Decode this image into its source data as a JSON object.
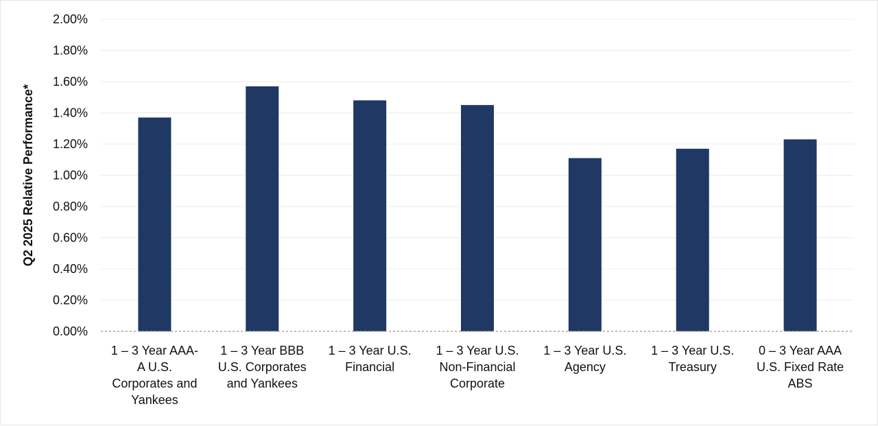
{
  "chart_data": {
    "type": "bar",
    "ylabel": "Q2 2025 Relative Performance*",
    "xlabel": "",
    "ylim": [
      0,
      0.02
    ],
    "grid": true,
    "yticks": [
      "0.00%",
      "0.20%",
      "0.40%",
      "0.60%",
      "0.80%",
      "1.00%",
      "1.20%",
      "1.40%",
      "1.60%",
      "1.80%",
      "2.00%"
    ],
    "categories": [
      [
        "1 – 3 Year AAA-",
        "A U.S.",
        "Corporates and",
        "Yankees"
      ],
      [
        "1 – 3 Year BBB",
        "U.S. Corporates",
        "and Yankees"
      ],
      [
        "1 – 3 Year U.S.",
        "Financial"
      ],
      [
        "1 – 3 Year U.S.",
        "Non-Financial",
        "Corporate"
      ],
      [
        "1 – 3 Year U.S.",
        "Agency"
      ],
      [
        "1 – 3 Year U.S.",
        "Treasury"
      ],
      [
        "0 – 3 Year AAA",
        "U.S. Fixed Rate",
        "ABS"
      ]
    ],
    "values": [
      0.0137,
      0.0157,
      0.0148,
      0.0145,
      0.0111,
      0.0117,
      0.0123
    ],
    "bar_color": "#1f3864"
  }
}
